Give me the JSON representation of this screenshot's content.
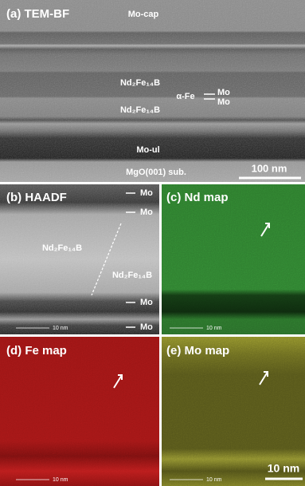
{
  "panels": [
    {
      "label": "(a) TEM-BF",
      "annotations": [
        "Mo-cap",
        "Nd₂Fe₁₄B",
        "α-Fe",
        "Mo",
        "Mo",
        "Nd₂Fe₁₄B",
        "Mo-ul",
        "MgO(001) sub."
      ],
      "scale_bar": "100 nm"
    },
    {
      "label": "(b) HAADF",
      "annotations": [
        "Mo",
        "Mo",
        "Nd₂Fe₁₄B",
        "Nd₂Fe₁₄B",
        "Mo",
        "Mo"
      ],
      "scale_bar": "10 nm"
    },
    {
      "label": "(c) Nd map",
      "scale_bar": "10 nm"
    },
    {
      "label": "(d) Fe map",
      "scale_bar": "10 nm"
    },
    {
      "label": "(e) Mo map",
      "scale_bar": "10 nm",
      "large_scale_bar": "10 nm"
    }
  ]
}
